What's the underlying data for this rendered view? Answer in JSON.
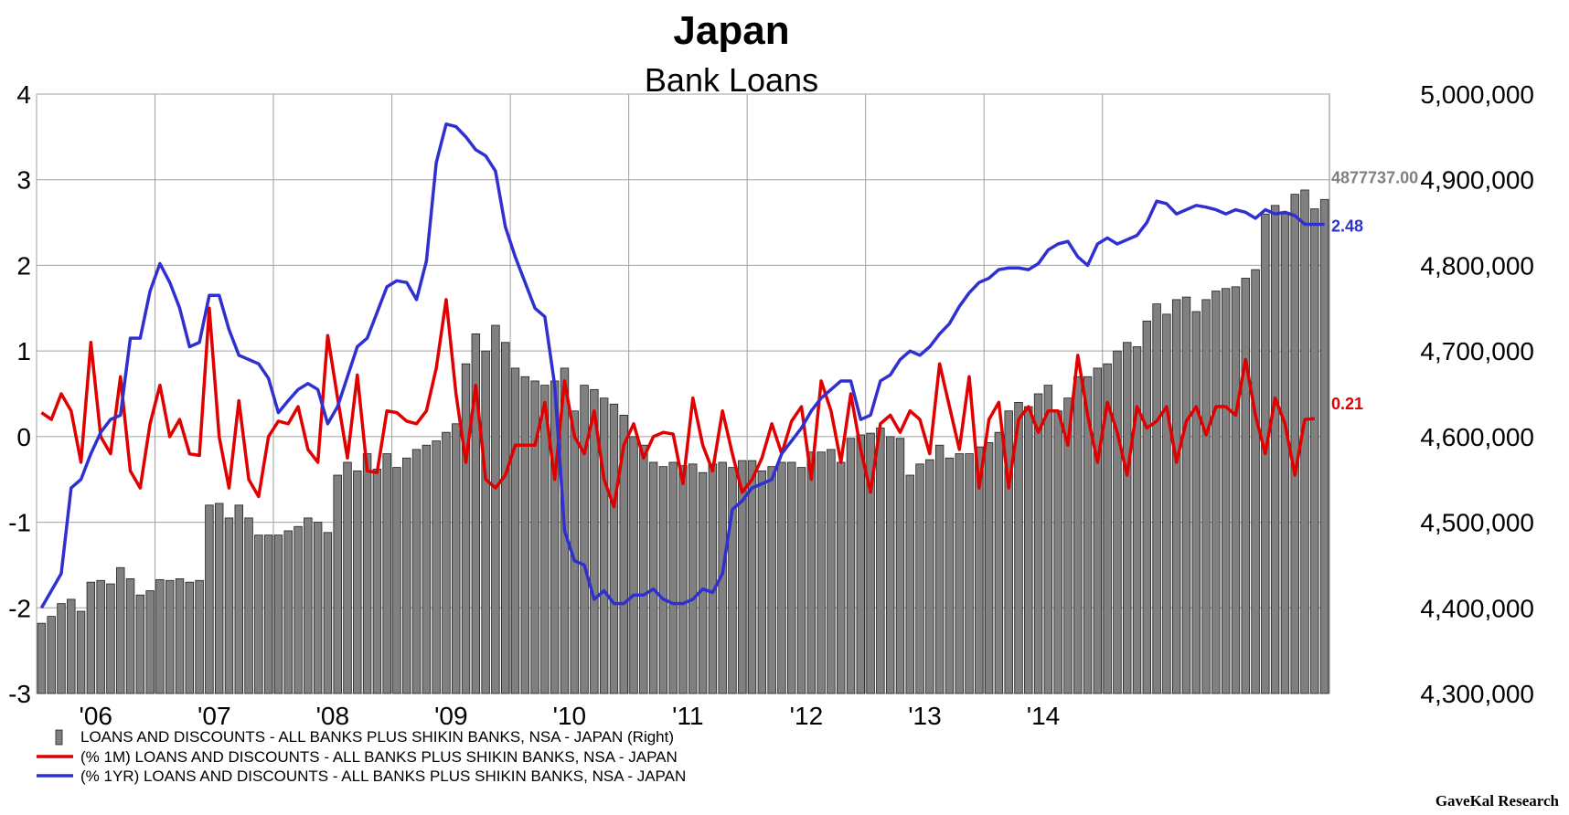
{
  "chart_data": {
    "type": "bar",
    "title": "Japan",
    "subtitle": "Bank Loans",
    "source": "GaveKal Research",
    "x_tick_labels": [
      "'06",
      "'07",
      "'08",
      "'09",
      "'10",
      "'11",
      "'12",
      "'13",
      "'14"
    ],
    "y_left": {
      "ylim": [
        -3,
        4
      ],
      "ticks": [
        "4",
        "3",
        "2",
        "1",
        "0",
        "-1",
        "-2",
        "-3"
      ]
    },
    "y_right": {
      "ylim": [
        4300000,
        5000000
      ],
      "ticks": [
        "5,000,000",
        "4,900,000",
        "4,800,000",
        "4,700,000",
        "4,600,000",
        "4,500,000",
        "4,400,000",
        "4,300,000"
      ]
    },
    "grid": true,
    "legend_placement": "bottom-left",
    "start_month": "2005-01",
    "series": [
      {
        "name": "LOANS AND DISCOUNTS - ALL BANKS PLUS SHIKIN BANKS, NSA - JAPAN   (Right)",
        "kind": "bar",
        "axis": "right",
        "color": "#808080",
        "last_label": "4877737.00",
        "values": [
          4382,
          4390,
          4405,
          4410,
          4396,
          4430,
          4432,
          4428,
          4447,
          4434,
          4415,
          4420,
          4433,
          4432,
          4434,
          4430,
          4432,
          4520,
          4522,
          4505,
          4520,
          4505,
          4485,
          4485,
          4485,
          4490,
          4495,
          4505,
          4500,
          4488,
          4555,
          4570,
          4560,
          4580,
          4562,
          4580,
          4564,
          4575,
          4585,
          4590,
          4595,
          4605,
          4615,
          4685,
          4720,
          4700,
          4730,
          4710,
          4680,
          4670,
          4665,
          4660,
          4665,
          4680,
          4630,
          4660,
          4655,
          4645,
          4638,
          4625,
          4600,
          4590,
          4570,
          4565,
          4570,
          4566,
          4568,
          4558,
          4568,
          4570,
          4564,
          4572,
          4572,
          4560,
          4565,
          4570,
          4570,
          4564,
          4582,
          4582,
          4585,
          4570,
          4598,
          4602,
          4604,
          4610,
          4600,
          4598,
          4555,
          4568,
          4573,
          4590,
          4575,
          4580,
          4580,
          4588,
          4593,
          4605,
          4630,
          4640,
          4635,
          4650,
          4660,
          4630,
          4645,
          4670,
          4670,
          4680,
          4685,
          4700,
          4710,
          4705,
          4735,
          4755,
          4743,
          4760,
          4763,
          4746,
          4760,
          4770,
          4773,
          4775,
          4785,
          4795,
          4860,
          4870,
          4860,
          4883,
          4888,
          4866,
          4877
        ]
      },
      {
        "name": "(% 1M) LOANS AND DISCOUNTS - ALL BANKS PLUS SHIKIN BANKS, NSA - JAPAN",
        "kind": "line",
        "axis": "left",
        "color": "#e00000",
        "last_label": "0.21",
        "values": [
          0.28,
          0.2,
          0.5,
          0.3,
          -0.3,
          1.1,
          0.0,
          -0.2,
          0.7,
          -0.4,
          -0.6,
          0.15,
          0.6,
          0.0,
          0.2,
          -0.2,
          -0.22,
          1.5,
          0.0,
          -0.6,
          0.42,
          -0.5,
          -0.7,
          0.0,
          0.18,
          0.15,
          0.35,
          -0.15,
          -0.3,
          1.18,
          0.45,
          -0.25,
          0.72,
          -0.4,
          -0.42,
          0.3,
          0.28,
          0.18,
          0.15,
          0.3,
          0.8,
          1.6,
          0.5,
          -0.3,
          0.6,
          -0.5,
          -0.6,
          -0.45,
          -0.1,
          -0.1,
          -0.1,
          0.4,
          -0.5,
          0.65,
          0.0,
          -0.2,
          0.3,
          -0.5,
          -0.82,
          -0.1,
          0.15,
          -0.25,
          0.0,
          0.05,
          0.03,
          -0.55,
          0.45,
          -0.1,
          -0.4,
          0.3,
          -0.2,
          -0.65,
          -0.5,
          -0.25,
          0.15,
          -0.2,
          0.18,
          0.35,
          -0.5,
          0.65,
          0.3,
          -0.3,
          0.5,
          -0.15,
          -0.65,
          0.15,
          0.25,
          0.05,
          0.3,
          0.2,
          -0.2,
          0.85,
          0.35,
          -0.15,
          0.7,
          -0.6,
          0.2,
          0.4,
          -0.6,
          0.2,
          0.35,
          0.05,
          0.3,
          0.3,
          -0.1,
          0.95,
          0.25,
          -0.3,
          0.4,
          0.05,
          -0.45,
          0.35,
          0.1,
          0.18,
          0.35,
          -0.3,
          0.18,
          0.35,
          0.02,
          0.35,
          0.35,
          0.25,
          0.9,
          0.25,
          -0.2,
          0.45,
          0.15,
          -0.45,
          0.2,
          0.21
        ]
      },
      {
        "name": "(% 1YR) LOANS AND DISCOUNTS - ALL BANKS PLUS SHIKIN BANKS, NSA - JAPAN",
        "kind": "line",
        "axis": "left",
        "color": "#3030d0",
        "last_label": "2.48",
        "values": [
          -2.0,
          -1.8,
          -1.6,
          -0.6,
          -0.5,
          -0.2,
          0.05,
          0.2,
          0.25,
          1.15,
          1.15,
          1.7,
          2.02,
          1.8,
          1.5,
          1.05,
          1.1,
          1.65,
          1.65,
          1.25,
          0.95,
          0.9,
          0.85,
          0.68,
          0.28,
          0.42,
          0.55,
          0.62,
          0.55,
          0.15,
          0.35,
          0.7,
          1.05,
          1.15,
          1.45,
          1.75,
          1.82,
          1.8,
          1.6,
          2.05,
          3.2,
          3.65,
          3.62,
          3.5,
          3.35,
          3.28,
          3.1,
          2.45,
          2.1,
          1.8,
          1.5,
          1.4,
          0.6,
          -1.1,
          -1.45,
          -1.5,
          -1.9,
          -1.8,
          -1.95,
          -1.95,
          -1.85,
          -1.85,
          -1.78,
          -1.9,
          -1.95,
          -1.95,
          -1.9,
          -1.78,
          -1.82,
          -1.6,
          -0.85,
          -0.75,
          -0.6,
          -0.55,
          -0.5,
          -0.2,
          -0.05,
          0.1,
          0.3,
          0.45,
          0.55,
          0.65,
          0.65,
          0.2,
          0.25,
          0.65,
          0.72,
          0.9,
          1.0,
          0.95,
          1.05,
          1.2,
          1.32,
          1.52,
          1.68,
          1.8,
          1.85,
          1.95,
          1.97,
          1.97,
          1.95,
          2.02,
          2.18,
          2.25,
          2.28,
          2.1,
          2.0,
          2.25,
          2.32,
          2.25,
          2.3,
          2.35,
          2.5,
          2.75,
          2.72,
          2.6,
          2.65,
          2.7,
          2.68,
          2.65,
          2.6,
          2.65,
          2.62,
          2.55,
          2.65,
          2.6,
          2.62,
          2.58,
          2.48,
          2.48,
          2.48
        ]
      }
    ]
  }
}
